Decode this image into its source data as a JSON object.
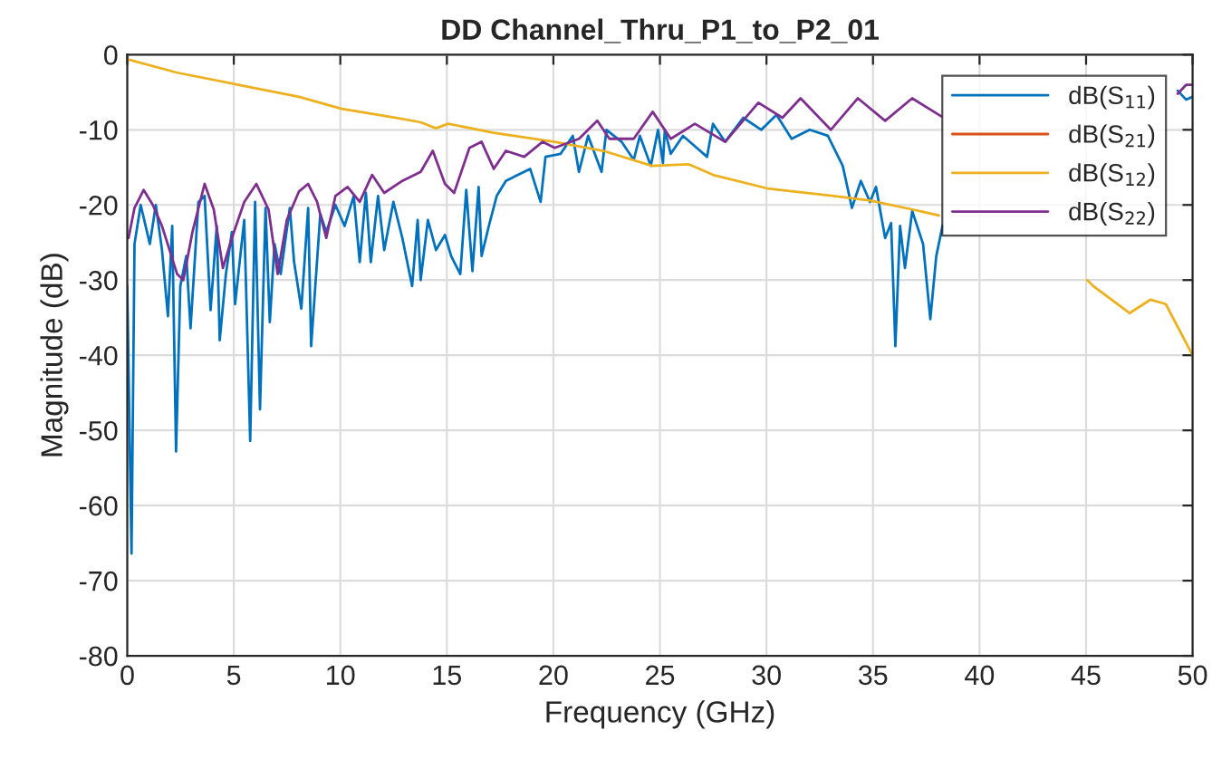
{
  "chart_data": {
    "type": "line",
    "title": "DD Channel_Thru_P1_to_P2_01",
    "xlabel": "Frequency (GHz)",
    "ylabel": "Magnitude (dB)",
    "xlim": [
      0,
      50
    ],
    "ylim": [
      -80,
      0
    ],
    "xticks": [
      0,
      5,
      10,
      15,
      20,
      25,
      30,
      35,
      40,
      45,
      50
    ],
    "yticks": [
      -80,
      -70,
      -60,
      -50,
      -40,
      -30,
      -20,
      -10,
      0
    ],
    "grid": true,
    "legend": "top right",
    "line_style": "solid",
    "marker": "none",
    "series": [
      {
        "name": "dB(S$_{11}$)",
        "color": "#0072bd",
        "x": [
          0,
          0.2,
          0.34,
          0.63,
          1.06,
          1.34,
          1.63,
          1.91,
          2.11,
          2.29,
          2.49,
          2.77,
          2.97,
          3.34,
          3.63,
          3.91,
          4.2,
          4.34,
          4.63,
          4.91,
          5.06,
          5.49,
          5.77,
          6.0,
          6.23,
          6.49,
          6.69,
          6.91,
          7.2,
          7.63,
          7.83,
          8.17,
          8.49,
          8.63,
          9.06,
          9.34,
          9.77,
          10.2,
          10.63,
          10.91,
          11.2,
          11.43,
          11.77,
          12.06,
          12.49,
          12.91,
          13.37,
          13.63,
          13.77,
          14.11,
          14.49,
          14.91,
          15.2,
          15.63,
          15.91,
          16.2,
          16.49,
          16.63,
          16.97,
          17.34,
          17.77,
          18.34,
          18.91,
          19.4,
          19.63,
          20.34,
          20.91,
          21.2,
          21.63,
          22.26,
          22.49,
          23.2,
          23.77,
          24.06,
          24.57,
          24.91,
          25.14,
          25.23,
          25.51,
          26.08,
          27.21,
          27.49,
          28.06,
          28.91,
          29.76,
          30.47,
          31.18,
          32.03,
          32.88,
          33.58,
          34.01,
          34.43,
          34.86,
          35.14,
          35.57,
          35.85,
          36.05,
          36.27,
          36.5,
          36.84,
          37.35,
          37.69,
          37.97,
          38.26,
          40,
          49.3,
          49.7,
          50
        ],
        "values": [
          -30.8,
          -66.4,
          -25.2,
          -20,
          -25.2,
          -20,
          -26,
          -34.8,
          -22.8,
          -52.8,
          -30.8,
          -26.8,
          -36.4,
          -19.6,
          -18.8,
          -34,
          -22.8,
          -38,
          -29.2,
          -23.6,
          -33.2,
          -22,
          -51.4,
          -19.6,
          -47.2,
          -20.4,
          -35.6,
          -25.2,
          -29.2,
          -20.4,
          -27.6,
          -33.8,
          -20.4,
          -38.8,
          -21.2,
          -23.6,
          -20,
          -22.8,
          -18.8,
          -27.6,
          -18.4,
          -27.6,
          -18.8,
          -26,
          -19.6,
          -24.4,
          -30.8,
          -22,
          -30,
          -22,
          -26,
          -24,
          -26.8,
          -29.2,
          -18,
          -28.8,
          -17.6,
          -26.8,
          -22.8,
          -18.8,
          -16.8,
          -16,
          -15.2,
          -19.6,
          -13.6,
          -13.2,
          -10.8,
          -15.6,
          -10.8,
          -15.6,
          -10,
          -11.6,
          -14,
          -10.8,
          -14.8,
          -10,
          -14.4,
          -10,
          -13.2,
          -10.8,
          -13.6,
          -9.2,
          -11.6,
          -8.4,
          -10,
          -8,
          -11.2,
          -10,
          -10.8,
          -14.8,
          -20.4,
          -16.8,
          -19.6,
          -17.6,
          -24.4,
          -22.4,
          -38.8,
          -22.8,
          -28.4,
          -20.8,
          -25.2,
          -35.2,
          -26.8,
          -22.8,
          null,
          -4.8,
          -6,
          -5.6
        ]
      },
      {
        "name": "dB(S$_{21}$)",
        "color": "#d95319"
      },
      {
        "name": "dB(S$_{12}$)",
        "color": "#edb120",
        "x": [
          0,
          2.34,
          5.2,
          8.06,
          10.06,
          12.63,
          13.77,
          14.49,
          15.06,
          17.2,
          20.06,
          22.34,
          24.63,
          26.36,
          27.49,
          30.04,
          33.16,
          34.86,
          36.84,
          38.1,
          42,
          45.06,
          45.34,
          47.04,
          48.03,
          48.74,
          50
        ],
        "values": [
          -0.6,
          -2.4,
          -4,
          -5.6,
          -7.2,
          -8.4,
          -9,
          -9.8,
          -9.2,
          -10.4,
          -11.6,
          -12.8,
          -14.8,
          -14.6,
          -16,
          -17.8,
          -18.8,
          -19.4,
          -20.6,
          -21.4,
          null,
          -30,
          -30.8,
          -34.4,
          -32.6,
          -33.2,
          -40
        ]
      },
      {
        "name": "dB(S$_{22}$)",
        "color": "#7e2f8e",
        "x": [
          0.06,
          0.34,
          0.77,
          1.2,
          1.63,
          2.34,
          2.63,
          3.06,
          3.63,
          4.06,
          4.49,
          4.91,
          5.49,
          6.06,
          6.63,
          7.06,
          7.49,
          8.06,
          8.49,
          8.91,
          9.34,
          9.77,
          10.34,
          10.91,
          11.49,
          12.06,
          12.91,
          13.77,
          14.34,
          14.91,
          15.34,
          16.06,
          16.63,
          17.2,
          17.77,
          18.63,
          19.49,
          20.06,
          21.2,
          22.06,
          22.63,
          23.77,
          24.66,
          25.51,
          26.64,
          28.06,
          29.62,
          30.75,
          31.6,
          33.02,
          34.29,
          35.57,
          36.84,
          38.2,
          40,
          49.3,
          49.7,
          50
        ],
        "values": [
          -24.4,
          -20.4,
          -18,
          -20,
          -22.8,
          -29.2,
          -30,
          -23.6,
          -17.2,
          -20.6,
          -28.4,
          -24.4,
          -19.6,
          -17.2,
          -20.6,
          -29.2,
          -22,
          -18.2,
          -17.2,
          -19.6,
          -24.4,
          -18.8,
          -17.6,
          -19.6,
          -16,
          -18.4,
          -16.8,
          -15.6,
          -12.8,
          -17.2,
          -18.4,
          -12.4,
          -11.6,
          -15.2,
          -12.8,
          -13.6,
          -11.6,
          -12.4,
          -11.2,
          -8.8,
          -11.2,
          -11.2,
          -7.6,
          -11.2,
          -9.2,
          -11.6,
          -6.4,
          -8.4,
          -5.8,
          -10,
          -5.8,
          -8.8,
          -5.8,
          -8.2,
          null,
          -5.2,
          -4,
          -4
        ]
      }
    ]
  }
}
